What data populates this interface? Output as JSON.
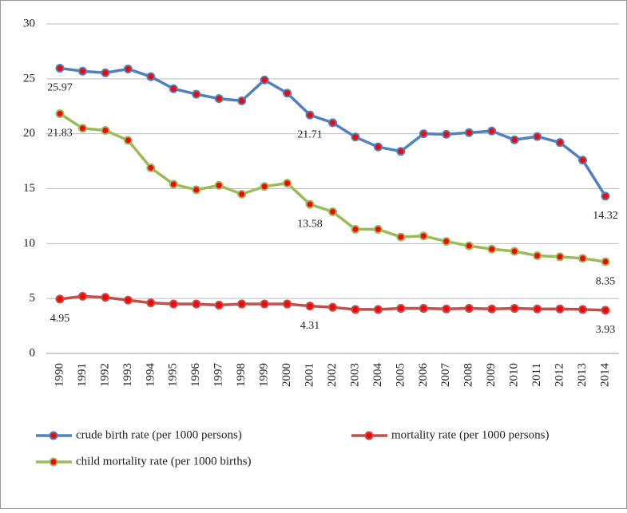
{
  "chart_data": {
    "type": "line",
    "categories": [
      "1990",
      "1991",
      "1992",
      "1993",
      "1994",
      "1995",
      "1996",
      "1997",
      "1998",
      "1999",
      "2000",
      "2001",
      "2002",
      "2003",
      "2004",
      "2005",
      "2006",
      "2007",
      "2008",
      "2009",
      "2010",
      "2011",
      "2012",
      "2013",
      "2014"
    ],
    "series": [
      {
        "name": "crude birth rate (per 1000 persons)",
        "color": "#4f81bd",
        "values": [
          25.97,
          25.7,
          25.55,
          25.9,
          25.2,
          24.1,
          23.6,
          23.2,
          23.0,
          24.9,
          23.7,
          21.71,
          21.0,
          19.7,
          18.8,
          18.4,
          20.0,
          19.95,
          20.1,
          20.25,
          19.45,
          19.75,
          19.2,
          17.6,
          14.32
        ]
      },
      {
        "name": "mortality rate (per 1000 persons)",
        "color": "#c0504d",
        "values": [
          4.95,
          5.2,
          5.1,
          4.85,
          4.6,
          4.5,
          4.5,
          4.4,
          4.5,
          4.5,
          4.5,
          4.31,
          4.2,
          4.0,
          4.0,
          4.1,
          4.1,
          4.05,
          4.1,
          4.05,
          4.1,
          4.05,
          4.05,
          4.0,
          3.93
        ]
      },
      {
        "name": "child mortality rate (per 1000 births)",
        "color": "#9bbb59",
        "values": [
          21.83,
          20.5,
          20.3,
          19.4,
          16.9,
          15.4,
          14.9,
          15.3,
          14.5,
          15.2,
          15.5,
          13.58,
          12.9,
          11.3,
          11.3,
          10.6,
          10.7,
          10.2,
          9.8,
          9.5,
          9.3,
          8.9,
          8.8,
          8.65,
          8.35
        ]
      }
    ],
    "data_labels": [
      0,
      11,
      24
    ],
    "marker_color": "#ff0000",
    "ylim": [
      0,
      30
    ],
    "yticks": [
      0,
      5,
      10,
      15,
      20,
      25,
      30
    ],
    "grid": true,
    "legend": "bottom"
  }
}
